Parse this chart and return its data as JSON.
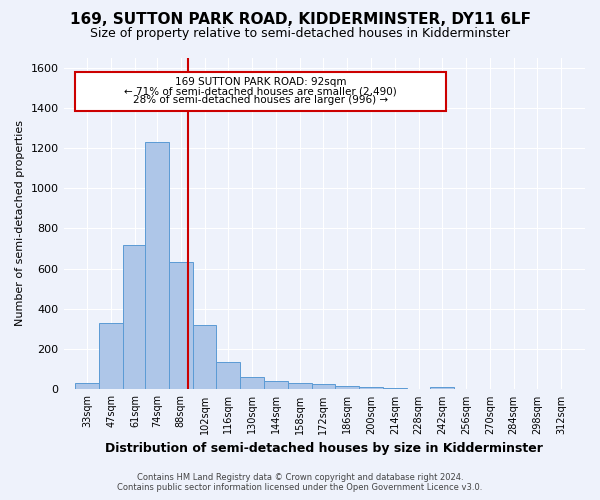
{
  "title": "169, SUTTON PARK ROAD, KIDDERMINSTER, DY11 6LF",
  "subtitle": "Size of property relative to semi-detached houses in Kidderminster",
  "xlabel": "Distribution of semi-detached houses by size in Kidderminster",
  "ylabel": "Number of semi-detached properties",
  "footer_line1": "Contains HM Land Registry data © Crown copyright and database right 2024.",
  "footer_line2": "Contains public sector information licensed under the Open Government Licence v3.0.",
  "annotation_line1": "169 SUTTON PARK ROAD: 92sqm",
  "annotation_line2": "← 71% of semi-detached houses are smaller (2,490)",
  "annotation_line3": "28% of semi-detached houses are larger (996) →",
  "property_size": 92,
  "bar_color": "#aec6e8",
  "bar_edge_color": "#5b9bd5",
  "vline_color": "#cc0000",
  "background_color": "#eef2fb",
  "plot_bg_color": "#eef2fb",
  "categories": [
    "33sqm",
    "47sqm",
    "61sqm",
    "74sqm",
    "88sqm",
    "102sqm",
    "116sqm",
    "130sqm",
    "144sqm",
    "158sqm",
    "172sqm",
    "186sqm",
    "200sqm",
    "214sqm",
    "228sqm",
    "242sqm",
    "256sqm",
    "270sqm",
    "284sqm",
    "298sqm",
    "312sqm"
  ],
  "bin_centers": [
    33,
    47,
    61,
    74,
    88,
    102,
    116,
    130,
    144,
    158,
    172,
    186,
    200,
    214,
    228,
    242,
    256,
    270,
    284,
    298,
    312
  ],
  "bin_width": 14,
  "values": [
    30,
    330,
    720,
    1230,
    635,
    320,
    135,
    60,
    40,
    30,
    25,
    18,
    12,
    8,
    0,
    13,
    0,
    0,
    0,
    0,
    0
  ],
  "ylim": [
    0,
    1650
  ],
  "yticks": [
    0,
    200,
    400,
    600,
    800,
    1000,
    1200,
    1400,
    1600
  ],
  "title_fontsize": 11,
  "subtitle_fontsize": 9,
  "ylabel_fontsize": 8,
  "xlabel_fontsize": 9
}
